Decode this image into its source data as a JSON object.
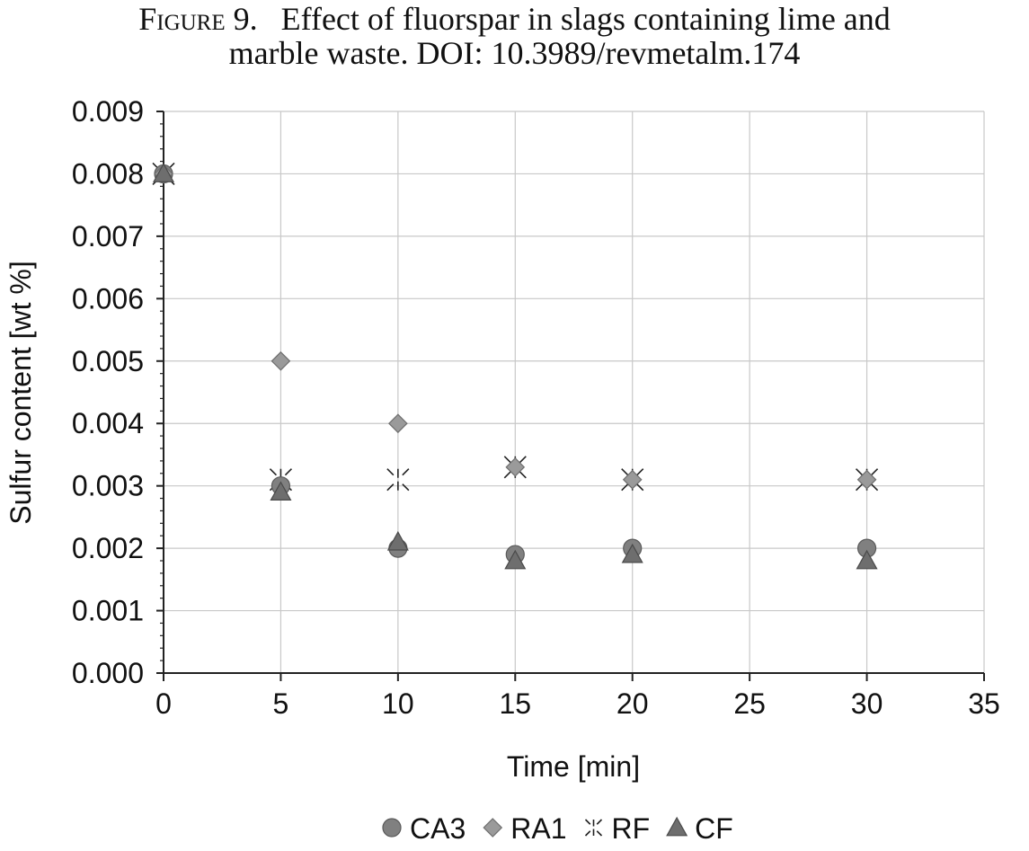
{
  "caption": {
    "lead": "Figure 9.",
    "line1": "Effect of fluorspar in slags containing lime and",
    "line2": "marble waste. DOI: 10.3989/revmetalm.174"
  },
  "chart_data": {
    "type": "scatter",
    "title": "",
    "xlabel": "Time [min]",
    "ylabel": "Sulfur content [wt %]",
    "xlim": [
      0,
      35
    ],
    "ylim": [
      0,
      0.009
    ],
    "xticks": [
      0,
      5,
      10,
      15,
      20,
      25,
      30,
      35
    ],
    "yticks": [
      0.0,
      0.001,
      0.002,
      0.003,
      0.004,
      0.005,
      0.006,
      0.007,
      0.008,
      0.009
    ],
    "ytick_labels": [
      "0.000",
      "0.001",
      "0.002",
      "0.003",
      "0.004",
      "0.005",
      "0.006",
      "0.007",
      "0.008",
      "0.009"
    ],
    "grid": true,
    "legend_position": "bottom",
    "series": [
      {
        "name": "CA3",
        "marker": "circle",
        "color": "#808080",
        "points": [
          {
            "x": 0,
            "y": 0.008
          },
          {
            "x": 5,
            "y": 0.003
          },
          {
            "x": 10,
            "y": 0.002
          },
          {
            "x": 15,
            "y": 0.0019
          },
          {
            "x": 20,
            "y": 0.002
          },
          {
            "x": 30,
            "y": 0.002
          }
        ]
      },
      {
        "name": "RA1",
        "marker": "diamond",
        "color": "#9a9a9a",
        "points": [
          {
            "x": 0,
            "y": 0.008
          },
          {
            "x": 5,
            "y": 0.005
          },
          {
            "x": 10,
            "y": 0.004
          },
          {
            "x": 15,
            "y": 0.0033
          },
          {
            "x": 20,
            "y": 0.0031
          },
          {
            "x": 30,
            "y": 0.0031
          }
        ]
      },
      {
        "name": "RF",
        "marker": "star",
        "color": "#222222",
        "points": [
          {
            "x": 0,
            "y": 0.008
          },
          {
            "x": 5,
            "y": 0.0031
          },
          {
            "x": 10,
            "y": 0.0031
          },
          {
            "x": 15,
            "y": 0.0033
          },
          {
            "x": 20,
            "y": 0.0031
          },
          {
            "x": 30,
            "y": 0.0031
          }
        ]
      },
      {
        "name": "CF",
        "marker": "triangle",
        "color": "#6e6e6e",
        "points": [
          {
            "x": 0,
            "y": 0.008
          },
          {
            "x": 5,
            "y": 0.0029
          },
          {
            "x": 10,
            "y": 0.0021
          },
          {
            "x": 15,
            "y": 0.0018
          },
          {
            "x": 20,
            "y": 0.0019
          },
          {
            "x": 30,
            "y": 0.0018
          }
        ]
      }
    ]
  }
}
